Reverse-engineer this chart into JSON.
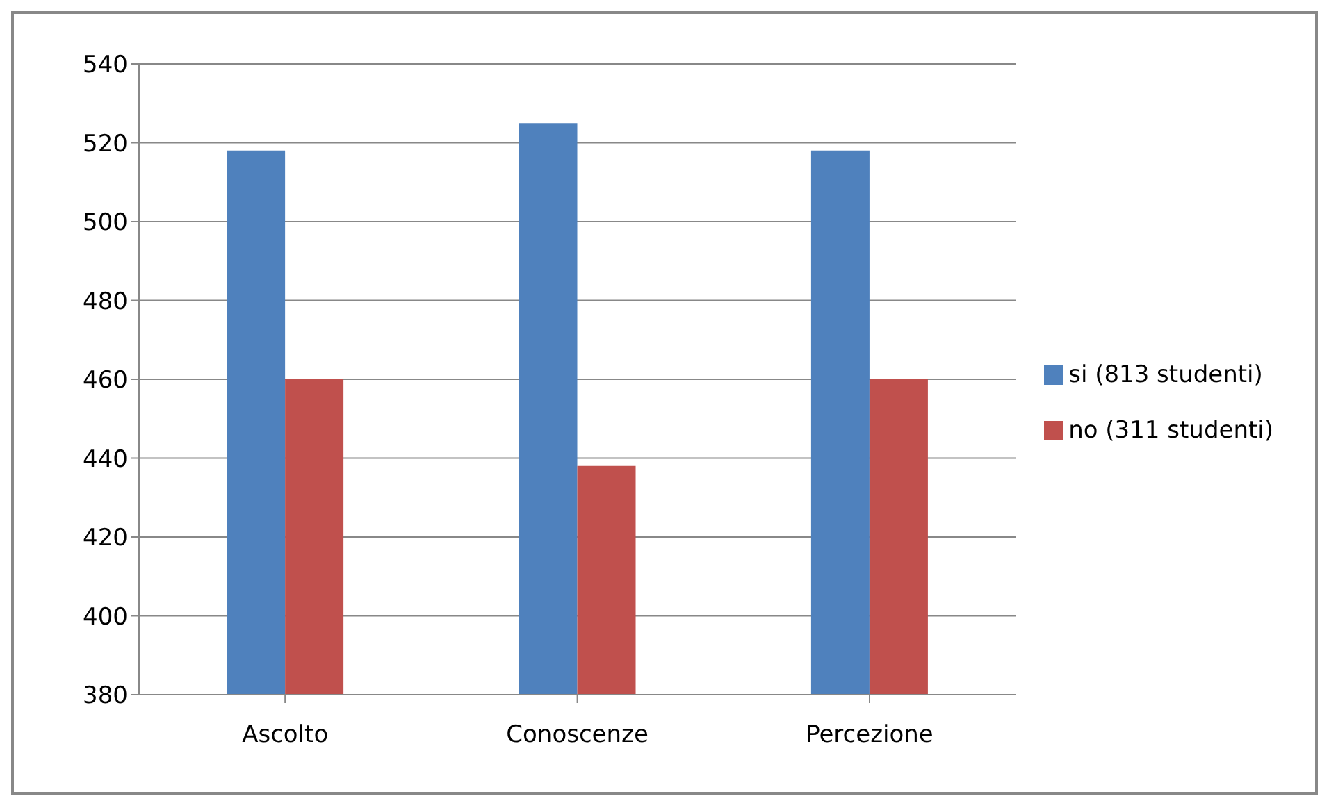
{
  "chart_data": {
    "type": "bar",
    "categories": [
      "Ascolto",
      "Conoscenze",
      "Percezione"
    ],
    "series": [
      {
        "name": "si (813 studenti)",
        "color": "#4f81bd",
        "values": [
          518,
          525,
          518
        ]
      },
      {
        "name": "no (311 studenti)",
        "color": "#c0504d",
        "values": [
          460,
          438,
          460
        ]
      }
    ],
    "ylim": [
      380,
      540
    ],
    "yticks": [
      380,
      400,
      420,
      440,
      460,
      480,
      500,
      520,
      540
    ],
    "grid": "y",
    "legend": "right"
  }
}
